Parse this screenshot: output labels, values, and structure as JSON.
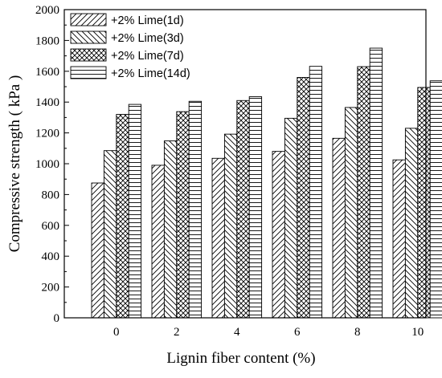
{
  "chart_data": {
    "type": "bar",
    "title": "",
    "xlabel": "Lignin fiber content (%)",
    "ylabel": "Compressive strength ( kPa )",
    "categories": [
      "0",
      "2",
      "4",
      "6",
      "8",
      "10"
    ],
    "ylim": [
      0,
      2000
    ],
    "yticks": [
      "0",
      "200",
      "400",
      "600",
      "800",
      "1000",
      "1200",
      "1400",
      "1600",
      "1800",
      "2000"
    ],
    "grid": false,
    "legend_position": "top-left",
    "series": [
      {
        "name": "+2% Lime(1d)",
        "pattern": "diagonal-forward",
        "values": [
          875,
          990,
          1035,
          1080,
          1165,
          1025
        ]
      },
      {
        "name": "+2% Lime(3d)",
        "pattern": "diagonal-backward",
        "values": [
          1085,
          1148,
          1192,
          1295,
          1365,
          1230
        ]
      },
      {
        "name": "+2% Lime(7d)",
        "pattern": "crosshatch",
        "values": [
          1320,
          1338,
          1410,
          1560,
          1630,
          1495
        ]
      },
      {
        "name": "+2% Lime(14d)",
        "pattern": "horizontal",
        "values": [
          1385,
          1405,
          1435,
          1632,
          1750,
          1538
        ]
      }
    ]
  }
}
